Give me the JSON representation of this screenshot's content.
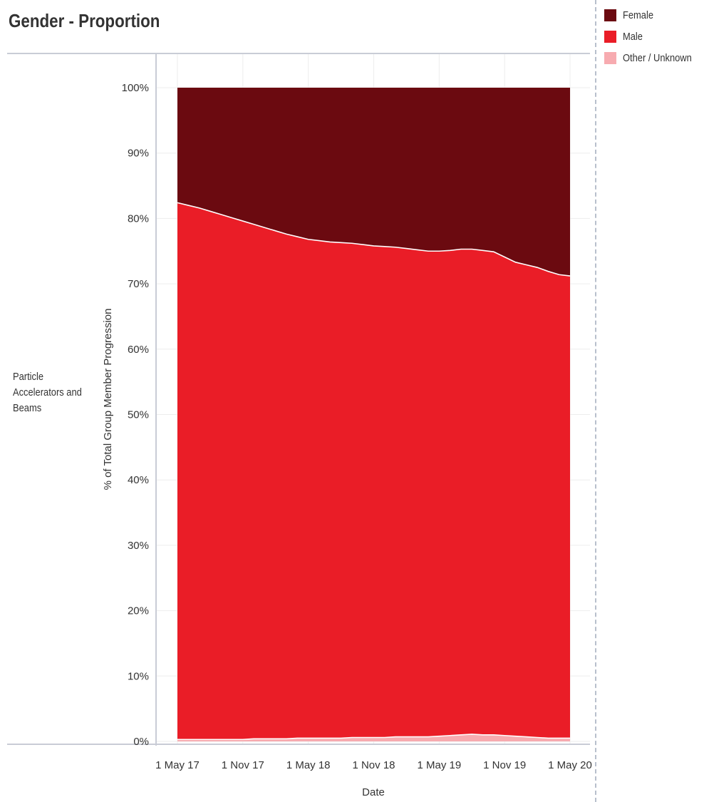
{
  "page": {
    "title": "Gender - Proportion",
    "row_label": "Particle Accelerators and Beams"
  },
  "legend": {
    "items": [
      {
        "label": "Female",
        "color": "#6b0a10"
      },
      {
        "label": "Male",
        "color": "#ea1d27"
      },
      {
        "label": "Other / Unknown",
        "color": "#f7abb0"
      }
    ]
  },
  "chart_data": {
    "type": "area",
    "stacked": true,
    "normalized": true,
    "xlabel": "Date",
    "ylabel": "% of Total Group Member Progression",
    "x_ticks": [
      "1 May 17",
      "1 Nov 17",
      "1 May 18",
      "1 Nov 18",
      "1 May 19",
      "1 Nov 19",
      "1 May 20"
    ],
    "x": [
      "2017-05",
      "2017-06",
      "2017-07",
      "2017-08",
      "2017-09",
      "2017-10",
      "2017-11",
      "2017-12",
      "2018-01",
      "2018-02",
      "2018-03",
      "2018-04",
      "2018-05",
      "2018-06",
      "2018-07",
      "2018-08",
      "2018-09",
      "2018-10",
      "2018-11",
      "2018-12",
      "2019-01",
      "2019-02",
      "2019-03",
      "2019-04",
      "2019-05",
      "2019-06",
      "2019-07",
      "2019-08",
      "2019-09",
      "2019-10",
      "2019-11",
      "2019-12",
      "2020-01",
      "2020-02",
      "2020-03",
      "2020-04",
      "2020-05"
    ],
    "y_ticks": [
      "0%",
      "10%",
      "20%",
      "30%",
      "40%",
      "50%",
      "60%",
      "70%",
      "80%",
      "90%",
      "100%"
    ],
    "ylim": [
      0,
      100
    ],
    "grid": true,
    "legend_position": "top-right",
    "series": [
      {
        "name": "Other / Unknown",
        "color": "#f7abb0",
        "values": [
          0.3,
          0.3,
          0.3,
          0.3,
          0.3,
          0.3,
          0.3,
          0.4,
          0.4,
          0.4,
          0.4,
          0.5,
          0.5,
          0.5,
          0.5,
          0.5,
          0.6,
          0.6,
          0.6,
          0.6,
          0.7,
          0.7,
          0.7,
          0.7,
          0.8,
          0.9,
          1.0,
          1.1,
          1.0,
          1.0,
          0.9,
          0.8,
          0.7,
          0.6,
          0.5,
          0.5,
          0.5
        ]
      },
      {
        "name": "Male",
        "color": "#ea1d27",
        "values": [
          82.1,
          81.7,
          81.3,
          80.8,
          80.3,
          79.8,
          79.3,
          78.7,
          78.2,
          77.7,
          77.2,
          76.7,
          76.3,
          76.1,
          75.9,
          75.8,
          75.6,
          75.4,
          75.2,
          75.1,
          74.9,
          74.7,
          74.5,
          74.3,
          74.2,
          74.2,
          74.3,
          74.2,
          74.1,
          73.9,
          73.2,
          72.5,
          72.2,
          71.9,
          71.4,
          70.9,
          70.7
        ]
      },
      {
        "name": "Female",
        "color": "#6b0a10",
        "values": [
          17.6,
          18.0,
          18.4,
          18.9,
          19.4,
          19.9,
          20.4,
          20.9,
          21.4,
          21.9,
          22.4,
          22.8,
          23.2,
          23.4,
          23.6,
          23.7,
          23.8,
          24.0,
          24.2,
          24.3,
          24.4,
          24.6,
          24.8,
          25.0,
          25.0,
          24.9,
          24.7,
          24.7,
          24.9,
          25.1,
          25.9,
          26.7,
          27.1,
          27.5,
          28.1,
          28.6,
          28.8
        ]
      }
    ]
  }
}
